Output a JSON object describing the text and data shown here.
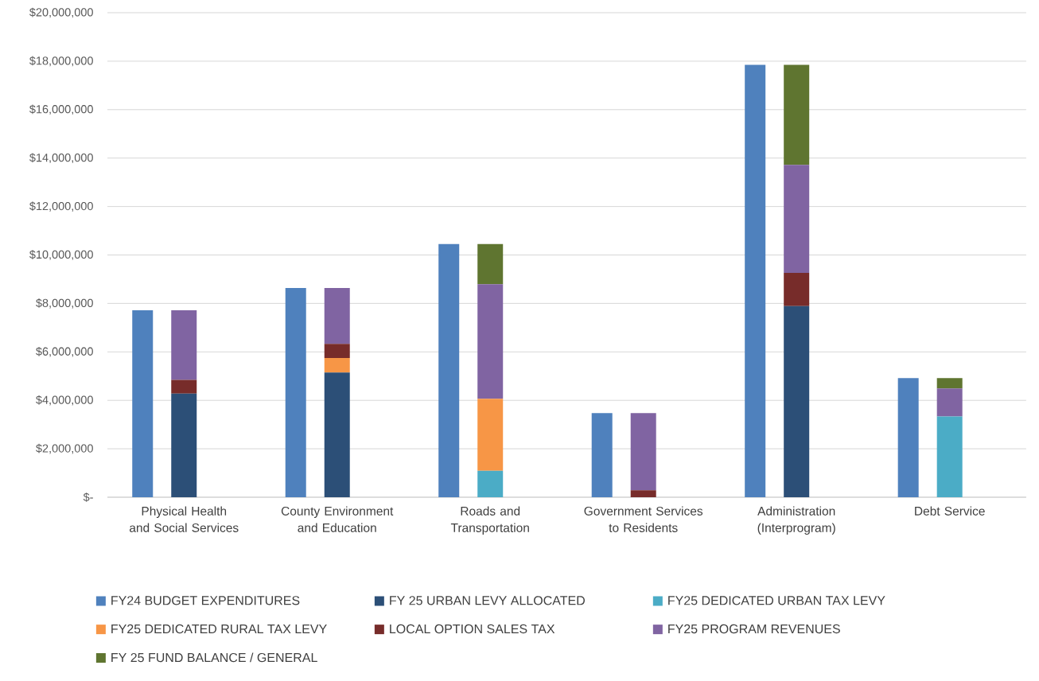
{
  "chart_data": [
    {
      "type": "bar",
      "grid": "y",
      "legend": "bottom",
      "categories": [
        "Physical Health and Social Services",
        "County Environment and Education",
        "Roads and Transportation",
        "Government Services to Residents",
        "Administration (Interprogram)",
        "Debt Service"
      ],
      "ylim": [
        0,
        20000000
      ],
      "yticks": [
        {
          "value": 0,
          "label": "$-"
        },
        {
          "value": 2000000,
          "label": "$2,000,000"
        },
        {
          "value": 4000000,
          "label": "$4,000,000"
        },
        {
          "value": 6000000,
          "label": "$6,000,000"
        },
        {
          "value": 8000000,
          "label": "$8,000,000"
        },
        {
          "value": 10000000,
          "label": "$10,000,000"
        },
        {
          "value": 12000000,
          "label": "$12,000,000"
        },
        {
          "value": 14000000,
          "label": "$14,000,000"
        },
        {
          "value": 16000000,
          "label": "$16,000,000"
        },
        {
          "value": 18000000,
          "label": "$18,000,000"
        },
        {
          "value": 20000000,
          "label": "$20,000,000"
        }
      ],
      "series": [
        {
          "name": "FY24 BUDGET EXPENDITURES",
          "color": "#4f81bd",
          "values": [
            7720000,
            8640000,
            10450000,
            3470000,
            17850000,
            4920000
          ]
        }
      ]
    },
    {
      "type": "bar",
      "stacked": true,
      "legend": "bottom",
      "tick_labels": false,
      "categories": [
        null,
        null,
        null,
        null,
        null,
        null
      ],
      "ylim": [
        0,
        20000000
      ],
      "series": [
        {
          "name": "FY 25 URBAN LEVY ALLOCATED",
          "color": "#2c4f77",
          "values": [
            4280000,
            5150000,
            null,
            null,
            7890000,
            null
          ]
        },
        {
          "name": "FY25 DEDICATED URBAN TAX LEVY",
          "color": "#4bacc6",
          "values": [
            null,
            null,
            1090000,
            null,
            null,
            3330000
          ]
        },
        {
          "name": "FY25 DEDICATED RURAL TAX LEVY",
          "color": "#f79646",
          "values": [
            null,
            600000,
            2970000,
            null,
            null,
            null
          ]
        },
        {
          "name": "LOCAL OPTION SALES TAX",
          "color": "#772c2a",
          "values": [
            560000,
            580000,
            null,
            290000,
            1370000,
            null
          ]
        },
        {
          "name": "FY25 PROGRAM REVENUES",
          "color": "#8064a2",
          "values": [
            2880000,
            2310000,
            4730000,
            3180000,
            4460000,
            1160000
          ]
        },
        {
          "name": "FY 25 FUND BALANCE / GENERAL",
          "color": "#5f7530",
          "values": [
            null,
            null,
            1660000,
            null,
            4130000,
            430000
          ]
        }
      ]
    }
  ]
}
